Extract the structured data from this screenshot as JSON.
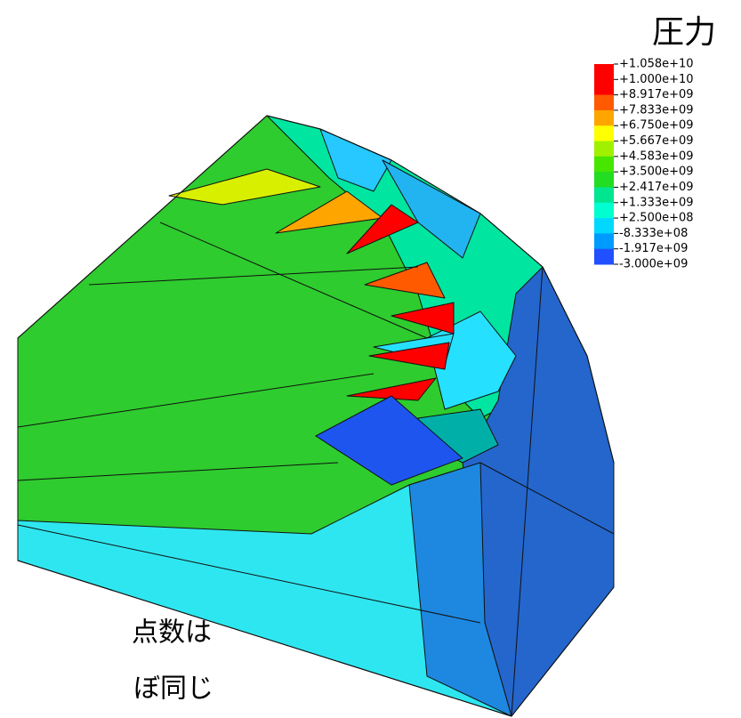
{
  "title": "圧力",
  "legend": {
    "labels": [
      "+1.058e+10",
      "+1.000e+10",
      "+8.917e+09",
      "+7.833e+09",
      "+6.750e+09",
      "+5.667e+09",
      "+4.583e+09",
      "+3.500e+09",
      "+2.417e+09",
      "+1.333e+09",
      "+2.500e+08",
      "-8.333e+08",
      "-1.917e+09",
      "-3.000e+09"
    ],
    "colors": [
      "#ff0000",
      "#ff0000",
      "#ff5a00",
      "#ffa500",
      "#ffff00",
      "#a0f000",
      "#46e600",
      "#22dd22",
      "#00e690",
      "#00ffd0",
      "#00d8ff",
      "#009bff",
      "#2050ff"
    ]
  },
  "caption": {
    "lines": [
      "点数は",
      "ぼ同じ"
    ]
  }
}
